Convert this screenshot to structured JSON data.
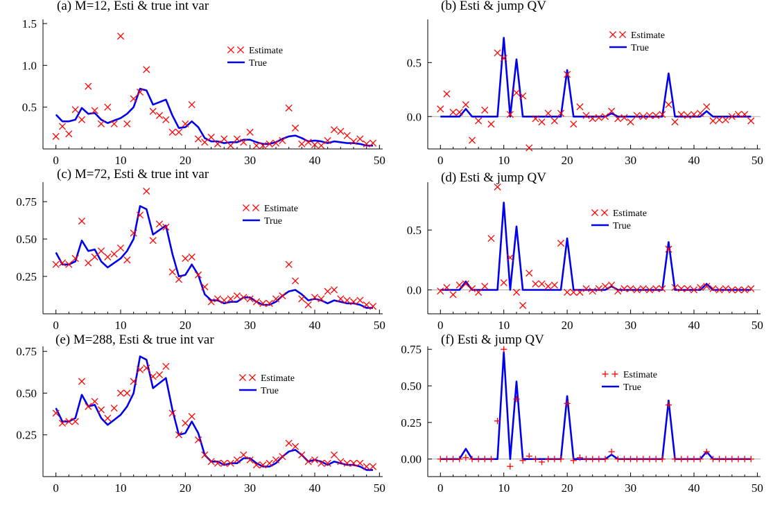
{
  "chart_data": [
    {
      "type": "line",
      "title": "(a) M=12, Esti & true int var",
      "xlim": [
        -2,
        50.5
      ],
      "ylim": [
        0,
        1.55
      ],
      "xticks": [
        0,
        10,
        20,
        30,
        40,
        50
      ],
      "yticks": [
        0.5,
        1.0,
        1.5
      ],
      "ytick_labels": [
        "0.5",
        "1.0",
        "1.5"
      ],
      "legend_position": "top-right",
      "series": [
        {
          "name": "Estimate",
          "marker": "x",
          "color": "#ff0000",
          "values": [
            0.15,
            0.27,
            0.18,
            0.47,
            0.35,
            0.75,
            0.46,
            0.3,
            0.5,
            0.3,
            1.35,
            0.3,
            0.6,
            0.68,
            0.95,
            0.45,
            0.4,
            0.35,
            0.2,
            0.2,
            0.3,
            0.53,
            0.12,
            0.08,
            0.14,
            0.06,
            0.12,
            0.04,
            0.12,
            0.08,
            0.2,
            0.04,
            0.04,
            0.06,
            0.07,
            0.1,
            0.49,
            0.25,
            0.06,
            0.08,
            0.05,
            0.04,
            0.1,
            0.23,
            0.21,
            0.16,
            0.09,
            0.12,
            0.06,
            0.07
          ]
        },
        {
          "name": "True",
          "marker": "line",
          "color": "#0000ee",
          "values": [
            0.41,
            0.33,
            0.33,
            0.35,
            0.49,
            0.42,
            0.43,
            0.35,
            0.31,
            0.34,
            0.37,
            0.42,
            0.5,
            0.72,
            0.7,
            0.53,
            0.56,
            0.59,
            0.4,
            0.25,
            0.26,
            0.33,
            0.26,
            0.13,
            0.09,
            0.09,
            0.07,
            0.08,
            0.08,
            0.11,
            0.11,
            0.08,
            0.06,
            0.06,
            0.08,
            0.12,
            0.15,
            0.16,
            0.13,
            0.09,
            0.1,
            0.09,
            0.07,
            0.09,
            0.08,
            0.07,
            0.07,
            0.06,
            0.04,
            0.04
          ]
        }
      ]
    },
    {
      "type": "line",
      "title": "(b) Esti & jump QV",
      "xlim": [
        -2,
        50.5
      ],
      "ylim": [
        -0.3,
        0.9
      ],
      "xticks": [
        0,
        10,
        20,
        30,
        40,
        50
      ],
      "yticks": [
        0.0,
        0.5
      ],
      "ytick_labels": [
        "0.0",
        "0.5"
      ],
      "zero_line": true,
      "legend_position": "top-right",
      "series": [
        {
          "name": "Estimate",
          "marker": "x",
          "color": "#ff0000",
          "values": [
            0.07,
            0.21,
            0.04,
            0.04,
            0.11,
            -0.22,
            -0.04,
            0.06,
            -0.07,
            0.59,
            0.54,
            0.02,
            0.22,
            0.19,
            -0.29,
            -0.02,
            -0.05,
            0.03,
            -0.04,
            0.03,
            0.39,
            -0.07,
            0.09,
            0.01,
            -0.02,
            -0.01,
            0.0,
            0.05,
            -0.02,
            -0.01,
            -0.05,
            0.01,
            0.0,
            0.01,
            0.01,
            0.02,
            0.11,
            -0.05,
            0.02,
            0.01,
            0.02,
            0.03,
            0.09,
            -0.04,
            -0.03,
            -0.03,
            0.0,
            0.02,
            0.02,
            -0.04
          ]
        },
        {
          "name": "True",
          "marker": "line",
          "color": "#0000ee",
          "values": [
            0,
            0,
            0,
            0,
            0.07,
            0,
            0,
            0,
            0,
            0,
            0.73,
            0,
            0.53,
            0,
            0,
            0,
            0,
            0,
            0,
            0,
            0.43,
            0,
            0,
            0,
            0,
            0,
            0,
            0.03,
            0,
            0,
            0,
            0,
            0,
            0,
            0,
            0,
            0.4,
            0,
            0,
            0,
            0,
            0,
            0.05,
            0,
            0,
            0,
            0,
            0,
            0,
            0
          ]
        }
      ]
    },
    {
      "type": "line",
      "title": "(c) M=72, Esti & true int var",
      "xlim": [
        -2,
        50.5
      ],
      "ylim": [
        0,
        0.88
      ],
      "xticks": [
        0,
        10,
        20,
        30,
        40,
        50
      ],
      "yticks": [
        0.25,
        0.5,
        0.75
      ],
      "ytick_labels": [
        "0.25",
        "0.50",
        "0.75"
      ],
      "legend_position": "top-right",
      "series": [
        {
          "name": "Estimate",
          "marker": "x",
          "color": "#ff0000",
          "values": [
            0.33,
            0.34,
            0.33,
            0.37,
            0.62,
            0.34,
            0.38,
            0.42,
            0.38,
            0.4,
            0.44,
            0.36,
            0.54,
            0.66,
            0.82,
            0.49,
            0.6,
            0.58,
            0.28,
            0.23,
            0.37,
            0.38,
            0.26,
            0.18,
            0.08,
            0.1,
            0.09,
            0.1,
            0.12,
            0.11,
            0.1,
            0.08,
            0.07,
            0.07,
            0.1,
            0.12,
            0.33,
            0.22,
            0.1,
            0.06,
            0.11,
            0.1,
            0.15,
            0.16,
            0.1,
            0.09,
            0.08,
            0.09,
            0.06,
            0.05
          ]
        },
        {
          "name": "True",
          "marker": "line",
          "color": "#0000ee",
          "values": [
            0.41,
            0.33,
            0.33,
            0.35,
            0.49,
            0.42,
            0.43,
            0.35,
            0.31,
            0.34,
            0.37,
            0.42,
            0.5,
            0.72,
            0.7,
            0.53,
            0.56,
            0.59,
            0.4,
            0.25,
            0.26,
            0.33,
            0.26,
            0.13,
            0.09,
            0.09,
            0.07,
            0.08,
            0.08,
            0.11,
            0.11,
            0.08,
            0.06,
            0.06,
            0.08,
            0.12,
            0.15,
            0.16,
            0.13,
            0.09,
            0.1,
            0.09,
            0.07,
            0.09,
            0.08,
            0.07,
            0.07,
            0.06,
            0.04,
            0.04
          ]
        }
      ]
    },
    {
      "type": "line",
      "title": "(d) Esti & jump QV",
      "xlim": [
        -2,
        50.5
      ],
      "ylim": [
        -0.2,
        0.9
      ],
      "xticks": [
        0,
        10,
        20,
        30,
        40,
        50
      ],
      "yticks": [
        0.0,
        0.5
      ],
      "ytick_labels": [
        "0.0",
        "0.5"
      ],
      "zero_line": true,
      "legend_position": "top-right",
      "series": [
        {
          "name": "Estimate",
          "marker": "x",
          "color": "#ff0000",
          "values": [
            -0.01,
            0.02,
            -0.04,
            0.04,
            0.05,
            0.01,
            -0.02,
            0.03,
            0.43,
            0.86,
            0.06,
            0.27,
            -0.02,
            -0.13,
            0.14,
            0.05,
            0.05,
            0.03,
            0.04,
            0.39,
            -0.02,
            -0.02,
            -0.02,
            0.01,
            -0.01,
            0.01,
            0.03,
            0.04,
            -0.01,
            0.01,
            0.01,
            0.0,
            0.01,
            0.0,
            0.01,
            0.01,
            0.34,
            0.02,
            0.01,
            0.01,
            0.0,
            0.02,
            0.03,
            0.01,
            0.0,
            0.01,
            0.0,
            0.0,
            0.0,
            0.01
          ]
        },
        {
          "name": "True",
          "marker": "line",
          "color": "#0000ee",
          "values": [
            0,
            0,
            0,
            0,
            0.07,
            0,
            0,
            0,
            0,
            0,
            0.73,
            0,
            0.53,
            0,
            0,
            0,
            0,
            0,
            0,
            0,
            0.43,
            0,
            0,
            0,
            0,
            0,
            0,
            0.03,
            0,
            0,
            0,
            0,
            0,
            0,
            0,
            0,
            0.4,
            0,
            0,
            0,
            0,
            0,
            0.05,
            0,
            0,
            0,
            0,
            0,
            0,
            0
          ]
        }
      ]
    },
    {
      "type": "line",
      "title": "(e) M=288, Esti & true int var",
      "xlim": [
        -2,
        50.5
      ],
      "ylim": [
        0,
        0.78
      ],
      "xticks": [
        0,
        10,
        20,
        30,
        40,
        50
      ],
      "yticks": [
        0.25,
        0.5,
        0.75
      ],
      "ytick_labels": [
        "0.25",
        "0.50",
        "0.75"
      ],
      "legend_position": "top-right",
      "series": [
        {
          "name": "Estimate",
          "marker": "x",
          "color": "#ff0000",
          "values": [
            0.38,
            0.32,
            0.33,
            0.33,
            0.57,
            0.42,
            0.45,
            0.4,
            0.35,
            0.41,
            0.5,
            0.5,
            0.57,
            0.64,
            0.65,
            0.6,
            0.61,
            0.66,
            0.38,
            0.25,
            0.32,
            0.36,
            0.22,
            0.13,
            0.09,
            0.08,
            0.08,
            0.08,
            0.1,
            0.13,
            0.1,
            0.07,
            0.07,
            0.08,
            0.1,
            0.12,
            0.2,
            0.18,
            0.13,
            0.09,
            0.1,
            0.08,
            0.08,
            0.13,
            0.09,
            0.08,
            0.08,
            0.08,
            0.06,
            0.06
          ]
        },
        {
          "name": "True",
          "marker": "line",
          "color": "#0000ee",
          "values": [
            0.41,
            0.33,
            0.33,
            0.35,
            0.49,
            0.42,
            0.43,
            0.35,
            0.31,
            0.34,
            0.37,
            0.42,
            0.5,
            0.72,
            0.7,
            0.53,
            0.56,
            0.59,
            0.4,
            0.25,
            0.26,
            0.33,
            0.26,
            0.13,
            0.09,
            0.09,
            0.07,
            0.08,
            0.08,
            0.11,
            0.11,
            0.08,
            0.06,
            0.06,
            0.08,
            0.12,
            0.15,
            0.16,
            0.13,
            0.09,
            0.1,
            0.09,
            0.07,
            0.09,
            0.08,
            0.07,
            0.07,
            0.06,
            0.04,
            0.04
          ]
        }
      ]
    },
    {
      "type": "line",
      "title": "(f) Esti & jump QV",
      "xlim": [
        -2,
        50.5
      ],
      "ylim": [
        -0.12,
        0.77
      ],
      "xticks": [
        0,
        10,
        20,
        30,
        40,
        50
      ],
      "yticks": [
        0.0,
        0.25,
        0.5,
        0.75
      ],
      "ytick_labels": [
        "0.00",
        "0.25",
        "0.50",
        "0.75"
      ],
      "zero_line": true,
      "legend_position": "top-right",
      "series": [
        {
          "name": "Estimate",
          "marker": "+",
          "color": "#ff0000",
          "values": [
            0.0,
            0.0,
            0.0,
            0.0,
            0.01,
            0.0,
            0.0,
            0.0,
            0.0,
            0.26,
            0.75,
            -0.05,
            0.41,
            -0.01,
            0.02,
            0.0,
            -0.02,
            0.0,
            0.0,
            0.0,
            0.38,
            -0.01,
            0.01,
            0.0,
            0.0,
            0.0,
            0.0,
            0.05,
            0.0,
            0.0,
            0.0,
            0.0,
            0.0,
            0.0,
            0.0,
            0.0,
            0.37,
            0.0,
            0.0,
            0.0,
            0.0,
            0.0,
            0.05,
            0.0,
            0.0,
            0.0,
            0.0,
            0.0,
            0.0,
            0.0
          ]
        },
        {
          "name": "True",
          "marker": "line",
          "color": "#0000ee",
          "values": [
            0,
            0,
            0,
            0,
            0.07,
            0,
            0,
            0,
            0,
            0,
            0.73,
            0,
            0.53,
            0,
            0,
            0,
            0,
            0,
            0,
            0,
            0.43,
            0,
            0,
            0,
            0,
            0,
            0,
            0.03,
            0,
            0,
            0,
            0,
            0,
            0,
            0,
            0,
            0.4,
            0,
            0,
            0,
            0,
            0,
            0.05,
            0,
            0,
            0,
            0,
            0,
            0,
            0
          ]
        }
      ]
    }
  ]
}
